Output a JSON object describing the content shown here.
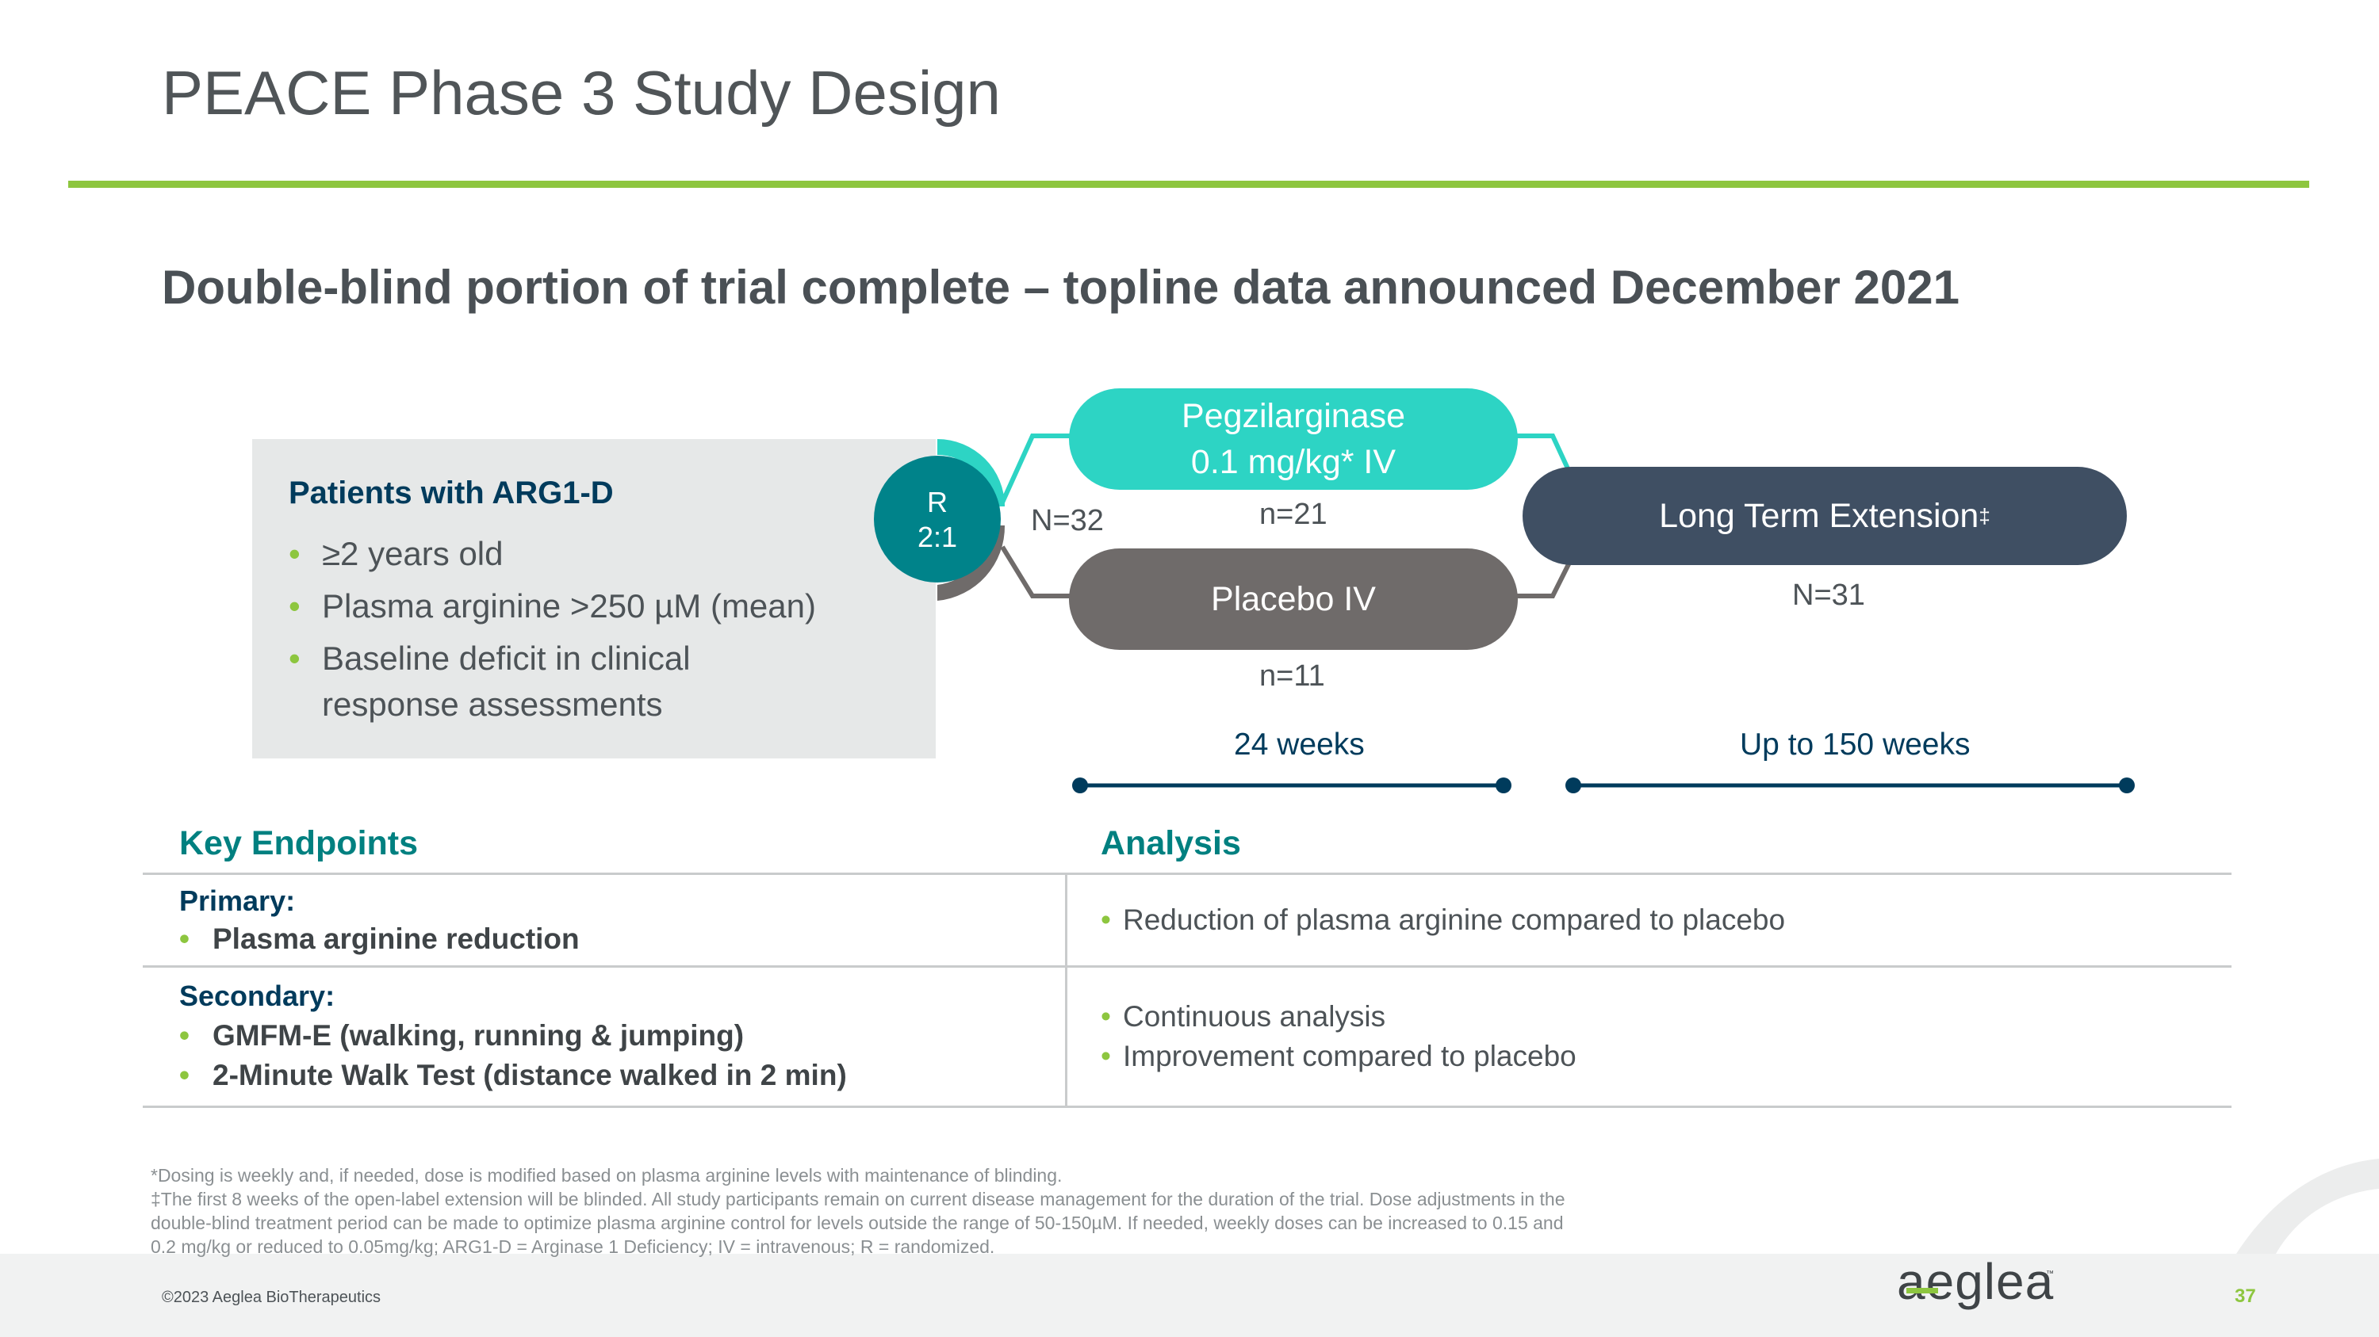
{
  "header": {
    "title": "PEACE Phase 3 Study Design",
    "subtitle": "Double-blind portion of trial complete – topline data announced December 2021"
  },
  "patients": {
    "heading": "Patients with ARG1-D",
    "criteria": [
      "≥2 years old",
      "Plasma arginine >250 µM (mean)",
      "Baseline deficit in clinical response assessments"
    ]
  },
  "randomization": {
    "letter": "R",
    "ratio": "2:1",
    "total_n": "N=32"
  },
  "arms": {
    "treatment": {
      "line1": "Pegzilarginase",
      "line2": "0.1 mg/kg* IV",
      "n": "n=21"
    },
    "placebo": {
      "label": "Placebo IV",
      "n": "n=11"
    },
    "extension": {
      "label": "Long Term Extension",
      "mark": "‡",
      "n": "N=31"
    }
  },
  "timeline": {
    "phase1": "24 weeks",
    "phase2": "Up to 150 weeks"
  },
  "endpoints_table": {
    "col1_header": "Key Endpoints",
    "col2_header": "Analysis",
    "primary_label": "Primary:",
    "primary_items": [
      "Plasma arginine reduction"
    ],
    "primary_analysis": [
      "Reduction of plasma arginine compared to placebo"
    ],
    "secondary_label": "Secondary:",
    "secondary_items": [
      "GMFM-E (walking, running & jumping)",
      "2-Minute Walk Test (distance walked in 2 min)"
    ],
    "secondary_analysis": [
      "Continuous analysis",
      "Improvement compared to placebo"
    ]
  },
  "footnotes": [
    "*Dosing is weekly and, if needed, dose is modified based on plasma arginine levels with maintenance of blinding.",
    "‡The first 8 weeks of the open-label extension will be blinded. All study participants remain on current disease management for the duration of the trial. Dose adjustments in the",
    "double-blind treatment period can be made to optimize plasma arginine control for levels outside the range of 50-150µM. If needed, weekly doses can be increased to 0.15 and",
    "0.2 mg/kg or reduced to 0.05mg/kg; ARG1-D = Arginase 1 Deficiency; IV = intravenous; R = randomized."
  ],
  "footer": {
    "copyright": "©2023 Aeglea BioTherapeutics",
    "logo_text": "aeglea",
    "logo_tm": "™",
    "page_number": "37"
  },
  "colors": {
    "accent_green": "#8dc63f",
    "teal_treatment": "#2dd4c4",
    "placebo_gray": "#6f6b6a",
    "extension_slate": "#3f4f63",
    "r_circle": "#00838a",
    "navy": "#003b5c"
  }
}
